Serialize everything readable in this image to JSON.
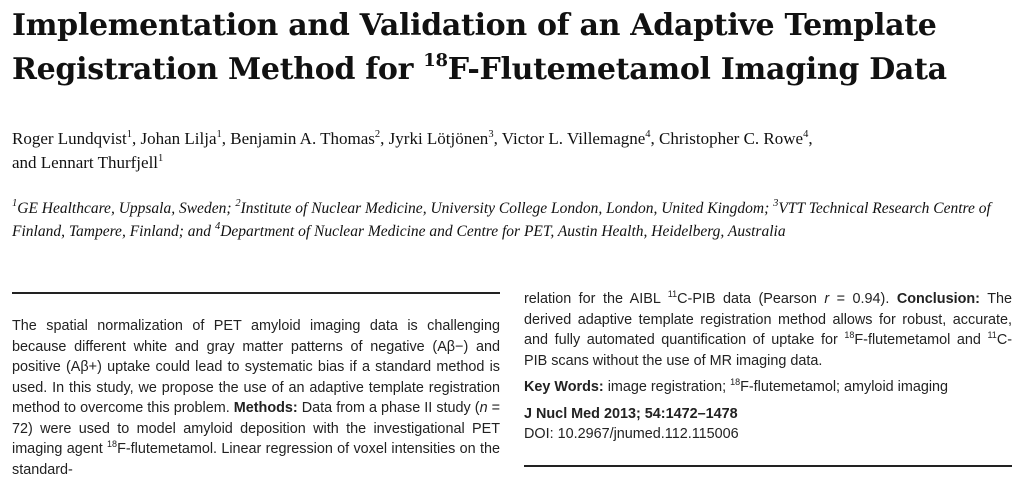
{
  "title": {
    "line1": "Implementation and Validation of an Adaptive Template",
    "line2_pre": "Registration Method for ",
    "line2_sup": "18",
    "line2_post": "F-Flutemetamol Imaging Data"
  },
  "authors": {
    "a1": "Roger Lundqvist",
    "a1_sup": "1",
    "a2": "Johan Lilja",
    "a2_sup": "1",
    "a3": "Benjamin A. Thomas",
    "a3_sup": "2",
    "a4": "Jyrki Lötjönen",
    "a4_sup": "3",
    "a5": "Victor L. Villemagne",
    "a5_sup": "4",
    "a6": "Christopher C. Rowe",
    "a6_sup": "4",
    "a7_prefix": "and ",
    "a7": "Lennart Thurfjell",
    "a7_sup": "1",
    "separator": ", "
  },
  "affiliations": {
    "s1": "1",
    "t1": "GE Healthcare, Uppsala, Sweden; ",
    "s2": "2",
    "t2": "Institute of Nuclear Medicine, University College London, London, United Kingdom; ",
    "s3": "3",
    "t3": "VTT Technical Research Centre of Finland, Tampere, Finland; and ",
    "s4": "4",
    "t4": "Department of Nuclear Medicine and Centre for PET, Austin Health, Heidelberg, Australia"
  },
  "abstract": {
    "intro": "The spatial normalization of PET amyloid imaging data is challenging because different white and gray matter patterns of negative (Aβ−) and positive (Aβ+) uptake could lead to systematic bias if a standard method is used. In this study, we propose the use of an adaptive template registration method to overcome this problem.",
    "methods_label": "Methods:",
    "methods_1": " Data from a phase II study (",
    "methods_n": "n",
    "methods_2": " = 72) were used to model amyloid deposition with the investigational PET imaging agent ",
    "methods_sup": "18",
    "methods_3": "F-flutemetamol. Linear regression of voxel intensities on the standard-",
    "cont_1": "relation for the AIBL ",
    "cont_sup": "11",
    "cont_2": "C-PIB data (Pearson ",
    "cont_r": "r",
    "cont_3": " = 0.94). ",
    "conclusion_label": "Conclusion:",
    "conclusion_1": " The derived adaptive template registration method allows for robust, accurate, and fully automated quantification of uptake for ",
    "conclusion_sup1": "18",
    "conclusion_2": "F-flutemetamol and ",
    "conclusion_sup2": "11",
    "conclusion_3": "C-PIB scans without the use of MR imaging data."
  },
  "keywords": {
    "label": "Key Words:",
    "text_1": " image registration; ",
    "sup": "18",
    "text_2": "F-flutemetamol; amyloid imaging"
  },
  "citation": {
    "journal": "J Nucl Med 2013; 54:1472–1478",
    "doi": "DOI: 10.2967/jnumed.112.115006"
  }
}
